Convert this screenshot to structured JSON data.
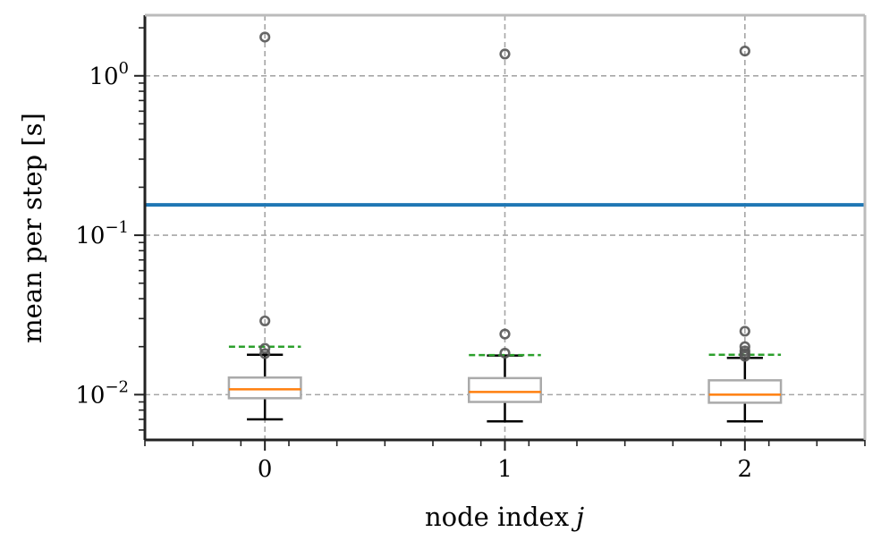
{
  "chart_data": {
    "type": "box",
    "title": "",
    "xlabel": "node index",
    "xlabel_var": "j",
    "ylabel": "mean per step [s]",
    "yscale": "log",
    "ylim": [
      0.0052,
      2.4
    ],
    "xlim": [
      -0.5,
      2.5
    ],
    "grid": true,
    "xticks": [
      0,
      1,
      2
    ],
    "xtick_labels": [
      "0",
      "1",
      "2"
    ],
    "yticks": [
      {
        "value": 1,
        "base": "10",
        "exp": "0"
      },
      {
        "value": 0.1,
        "base": "10",
        "exp": "−1"
      },
      {
        "value": 0.01,
        "base": "10",
        "exp": "−2"
      }
    ],
    "hline": {
      "value": 0.155,
      "color": "#1f77b4"
    },
    "boxes": [
      {
        "x": 0,
        "whislo": 0.007,
        "q1": 0.0095,
        "median": 0.0108,
        "q3": 0.0128,
        "whishi": 0.0178,
        "mean": 0.02,
        "fliers": [
          0.0181,
          0.0195,
          0.029,
          1.75
        ]
      },
      {
        "x": 1,
        "whislo": 0.0068,
        "q1": 0.009,
        "median": 0.0104,
        "q3": 0.0127,
        "whishi": 0.0176,
        "mean": 0.0177,
        "fliers": [
          0.0182,
          0.024,
          1.37
        ]
      },
      {
        "x": 2,
        "whislo": 0.0068,
        "q1": 0.0089,
        "median": 0.01,
        "q3": 0.0123,
        "whishi": 0.017,
        "mean": 0.0178,
        "fliers": [
          0.0174,
          0.0181,
          0.0188,
          0.02,
          0.025,
          1.43
        ]
      }
    ],
    "colors": {
      "box": "#aaaaaa",
      "median": "#ff7f0e",
      "mean": "#2ca02c",
      "whisker": "#000000",
      "flier": "#555555",
      "grid": "#a6a6a6"
    }
  }
}
